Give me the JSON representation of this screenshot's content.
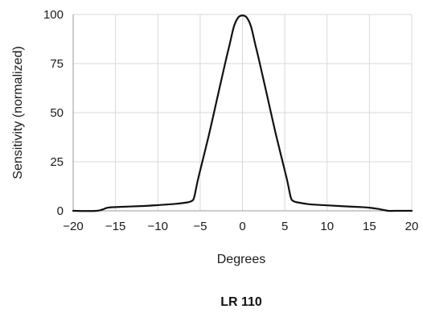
{
  "chart_data": {
    "type": "line",
    "title": "",
    "caption": "LR 110",
    "xlabel": "Degrees",
    "ylabel": "Sensitivity (normalized)",
    "xlim": [
      -20,
      20
    ],
    "ylim": [
      0,
      100
    ],
    "xticks": [
      -20,
      -15,
      -10,
      -5,
      0,
      5,
      10,
      15,
      20
    ],
    "xtick_labels": [
      "−20",
      "−15",
      "−10",
      "−5",
      "0",
      "5",
      "10",
      "15",
      "20"
    ],
    "yticks": [
      0,
      25,
      50,
      75,
      100
    ],
    "ytick_labels": [
      "0",
      "25",
      "50",
      "75",
      "100"
    ],
    "grid": true,
    "line_color": "#111111",
    "grid_color": "#d9d9d9",
    "series": [
      {
        "x": [
          -20,
          -17.2,
          -16,
          -15,
          -12,
          -10,
          -8,
          -6.5,
          -6,
          -5.7,
          -5.2,
          -4,
          -3,
          -2,
          -1.5,
          -1,
          -0.5,
          0,
          0.5,
          1,
          1.5,
          2,
          3,
          4,
          5.2,
          5.7,
          6,
          6.5,
          8,
          10,
          12,
          14,
          15,
          16,
          17.2,
          18,
          20
        ],
        "y": [
          0,
          0,
          1.5,
          1.9,
          2.4,
          2.9,
          3.5,
          4.3,
          5.0,
          7.0,
          17,
          38,
          57,
          76,
          85,
          94,
          98.5,
          99.5,
          98.5,
          94,
          85,
          76,
          57,
          38,
          17,
          7.0,
          5.0,
          4.3,
          3.3,
          2.8,
          2.3,
          1.9,
          1.6,
          1.0,
          0,
          0,
          0
        ]
      }
    ]
  }
}
